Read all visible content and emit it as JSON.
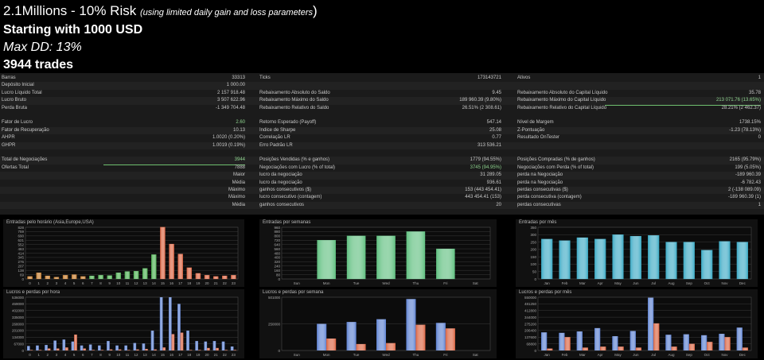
{
  "header": {
    "title": "2.1Millions - 10% Risk",
    "subtitle": "(using limited daily gain and loss parameters",
    "close_paren": ")",
    "start": "Starting with 1000 USD",
    "maxdd": "Max DD: 13%",
    "trades": "3944 trades"
  },
  "rows": [
    {
      "y": 0,
      "c1l": "Barras",
      "c1v": "33313",
      "c2l": "Ticks",
      "c2v": "173143721",
      "c3l": "Ativos",
      "c3v": "1"
    },
    {
      "y": 1,
      "c1l": "Depósito Inicial",
      "c1v": "1 000.00",
      "c2l": "",
      "c2v": "",
      "c3l": "",
      "c3v": ""
    },
    {
      "y": 2,
      "c1l": "Lucro Líquido Total",
      "c1v": "2 157 918.48",
      "c2l": "Rebaixamento Absoluto do Saldo",
      "c2v": "9.45",
      "c3l": "Rebaixamento Absoluto do Capital Líquido",
      "c3v": "35.78"
    },
    {
      "y": 3,
      "c1l": "Lucro Bruto",
      "c1v": "3 507 622.96",
      "c2l": "Rebaixamento Máximo do Saldo",
      "c2v": "189 960.39 (9.80%)",
      "c3l": "Rebaixamento Máximo do Capital Líquido",
      "c3v": "213 071.76 (13.65%)"
    },
    {
      "y": 4,
      "c1l": "Perda Bruta",
      "c1v": "-1 349 704.48",
      "c2l": "Rebaixamento Relativo do Saldo",
      "c2v": "26.51% (2 308.61)",
      "c3l": "Rebaixamento Relativo do Capital Líquido",
      "c3v": "28.21% (2 462.37)"
    },
    {
      "y": 6,
      "c1l": "Fator de Lucro",
      "c1v": "2.60",
      "c2l": "Retorno Esperado (Payoff)",
      "c2v": "547.14",
      "c3l": "Nível de Margem",
      "c3v": "1738.15%"
    },
    {
      "y": 7,
      "c1l": "Fator de Recuperação",
      "c1v": "10.13",
      "c2l": "Índice de Sharpe",
      "c2v": "25.08",
      "c3l": "Z-Pontuação",
      "c3v": "-1.23 (78.13%)"
    },
    {
      "y": 8,
      "c1l": "AHPR",
      "c1v": "1.0020 (0.20%)",
      "c2l": "Correlação LR",
      "c2v": "0.77",
      "c3l": "Resultado OnTester",
      "c3v": "0"
    },
    {
      "y": 9,
      "c1l": "GHPR",
      "c1v": "1.0019 (0.19%)",
      "c2l": "Erro Padrão LR",
      "c2v": "313 536.21",
      "c3l": "",
      "c3v": ""
    },
    {
      "y": 11,
      "c1l": "Total de Negociações",
      "c1v": "3944",
      "c2l": "Posições Vendidas (% e ganhos)",
      "c2v": "1779 (94.55%)",
      "c3l": "Posições Compradas (% de ganhos)",
      "c3v": "2165 (95.79%)"
    },
    {
      "y": 12,
      "c1l": "Ofertas Total",
      "c1v": "7888",
      "c2l": "Negociações com Lucro (% of total)",
      "c2v": "3745 (94.95%)",
      "c3l": "Negociações com Perda (% of total)",
      "c3v": "199 (5.05%)"
    },
    {
      "y": 13,
      "mid": "Maior",
      "c2l": "lucro da negociação",
      "c2v": "31 289.05",
      "c3l": "perda na Negociação",
      "c3v": "-189 960.39"
    },
    {
      "y": 14,
      "mid": "Média",
      "c2l": "lucro da negociação",
      "c2v": "936.61",
      "c3l": "perda na Negociação",
      "c3v": "-6 782.43"
    },
    {
      "y": 15,
      "mid": "Máximo",
      "c2l": "ganhos consecutivos ($)",
      "c2v": "153 (443 454.41)",
      "c3l": "perdas consecutivas ($)",
      "c3v": "2 (-138 089.09)"
    },
    {
      "y": 16,
      "mid": "Máximo",
      "c2l": "lucro consecutivo (contagem)",
      "c2v": "443 454.41 (153)",
      "c3l": "perda consecutiva (contagem)",
      "c3v": "-189 960.39 (1)"
    },
    {
      "y": 17,
      "mid": "Média",
      "c2l": "ganhos consecutivos",
      "c2v": "20",
      "c3l": "perdas consecutivas",
      "c3v": "1"
    }
  ],
  "chart_data": [
    {
      "id": "entries-hour",
      "type": "bar",
      "title": "Entradas pelo horário (Asia,Europe,USA)",
      "categories": [
        "0",
        "1",
        "2",
        "3",
        "4",
        "5",
        "6",
        "7",
        "8",
        "9",
        "10",
        "11",
        "12",
        "13",
        "14",
        "15",
        "16",
        "17",
        "18",
        "19",
        "20",
        "21",
        "22",
        "23"
      ],
      "values": [
        40,
        100,
        50,
        30,
        60,
        70,
        40,
        50,
        60,
        55,
        100,
        120,
        125,
        170,
        390,
        830,
        560,
        400,
        180,
        90,
        60,
        40,
        50,
        60
      ],
      "colors": [
        "#c47a2a",
        "#c47a2a",
        "#c47a2a",
        "#c47a2a",
        "#c47a2a",
        "#c47a2a",
        "#c47a2a",
        "#4caf50",
        "#4caf50",
        "#4caf50",
        "#4caf50",
        "#4caf50",
        "#4caf50",
        "#4caf50",
        "#4caf50",
        "#d9603d",
        "#d9603d",
        "#d9603d",
        "#d9603d",
        "#d9603d",
        "#d9603d",
        "#d9603d",
        "#d9603d",
        "#d9603d"
      ],
      "yticks": [
        "0",
        "69",
        "138",
        "207",
        "276",
        "345",
        "414",
        "483",
        "552",
        "621",
        "690",
        "759",
        "828"
      ],
      "ylim": [
        0,
        828
      ]
    },
    {
      "id": "entries-week",
      "type": "bar",
      "title": "Entradas por semanas",
      "categories": [
        "Sun",
        "Mon",
        "Tue",
        "Wed",
        "Thu",
        "Fri",
        "Sat"
      ],
      "values": [
        0,
        720,
        800,
        800,
        880,
        560,
        0
      ],
      "colors": [
        "#5fbf7f",
        "#5fbf7f",
        "#5fbf7f",
        "#5fbf7f",
        "#5fbf7f",
        "#5fbf7f",
        "#5fbf7f"
      ],
      "yticks": [
        "0",
        "80",
        "160",
        "240",
        "320",
        "400",
        "480",
        "560",
        "640",
        "720",
        "800",
        "880",
        "960"
      ],
      "ylim": [
        0,
        960
      ]
    },
    {
      "id": "entries-month",
      "type": "bar",
      "title": "Entradas por mês",
      "categories": [
        "Jan",
        "Feb",
        "Mar",
        "Apr",
        "May",
        "Jun",
        "Jul",
        "Aug",
        "Sep",
        "Oct",
        "Nov",
        "Dec"
      ],
      "values": [
        270,
        260,
        280,
        270,
        300,
        290,
        295,
        250,
        250,
        195,
        255,
        250
      ],
      "colors": [
        "#3aa9c4",
        "#3aa9c4",
        "#3aa9c4",
        "#3aa9c4",
        "#3aa9c4",
        "#3aa9c4",
        "#3aa9c4",
        "#3aa9c4",
        "#3aa9c4",
        "#3aa9c4",
        "#3aa9c4",
        "#3aa9c4"
      ],
      "yticks": [
        "0",
        "50",
        "100",
        "150",
        "200",
        "250",
        "300",
        "350"
      ],
      "ylim": [
        0,
        350
      ]
    },
    {
      "id": "pl-hour",
      "type": "bar",
      "title": "Lucros e perdas por hora",
      "categories": [
        "0",
        "1",
        "2",
        "3",
        "4",
        "5",
        "6",
        "7",
        "8",
        "9",
        "10",
        "11",
        "12",
        "13",
        "14",
        "15",
        "16",
        "17",
        "18",
        "19",
        "20",
        "21",
        "22",
        "23"
      ],
      "series": [
        {
          "name": "profit",
          "values": [
            45000,
            50000,
            55000,
            100000,
            110000,
            90000,
            50000,
            60000,
            50000,
            95000,
            50000,
            50000,
            75000,
            70000,
            200000,
            538000,
            538000,
            470000,
            200000,
            95000,
            90000,
            95000,
            90000,
            40000
          ],
          "color": "#5a7fd0"
        },
        {
          "name": "loss",
          "values": [
            5000,
            5000,
            20000,
            20000,
            30000,
            160000,
            20000,
            5000,
            5000,
            10000,
            10000,
            5000,
            10000,
            15000,
            10000,
            30000,
            165000,
            180000,
            5000,
            5000,
            25000,
            25000,
            5000,
            5000
          ],
          "color": "#d9603d"
        }
      ],
      "yticks": [
        "0",
        "67000",
        "134000",
        "201000",
        "268000",
        "335000",
        "402000",
        "469000",
        "536000"
      ],
      "ylim": [
        0,
        538000
      ]
    },
    {
      "id": "pl-week",
      "type": "bar",
      "title": "Lucros e perdas por semana",
      "categories": [
        "Sun",
        "Mon",
        "Tue",
        "Wed",
        "Thu",
        "Fri",
        "Sat"
      ],
      "series": [
        {
          "name": "profit",
          "values": [
            0,
            290000,
            310000,
            340000,
            560000,
            300000,
            0
          ],
          "color": "#5a7fd0"
        },
        {
          "name": "loss",
          "values": [
            0,
            130000,
            70000,
            80000,
            280000,
            240000,
            0
          ],
          "color": "#d9603d"
        }
      ],
      "yticks": [
        "0",
        "250000",
        "501000"
      ],
      "ylim": [
        0,
        580000
      ]
    },
    {
      "id": "pl-month",
      "type": "bar",
      "title": "Lucros e perdas por mês",
      "categories": [
        "Jan",
        "Feb",
        "Mar",
        "Apr",
        "May",
        "Jun",
        "Jul",
        "Aug",
        "Sep",
        "Oct",
        "Nov",
        "Dec"
      ],
      "series": [
        {
          "name": "profit",
          "values": [
            190000,
            185000,
            200000,
            235000,
            150000,
            205000,
            555000,
            165000,
            170000,
            160000,
            175000,
            240000
          ],
          "color": "#5a7fd0"
        },
        {
          "name": "loss",
          "values": [
            20000,
            140000,
            30000,
            40000,
            40000,
            30000,
            285000,
            40000,
            70000,
            90000,
            140000,
            30000
          ],
          "color": "#d9603d"
        }
      ],
      "yticks": [
        "0",
        "68800",
        "137600",
        "206400",
        "275200",
        "344000",
        "412800",
        "481250",
        "550000"
      ],
      "ylim": [
        0,
        560000
      ]
    }
  ]
}
